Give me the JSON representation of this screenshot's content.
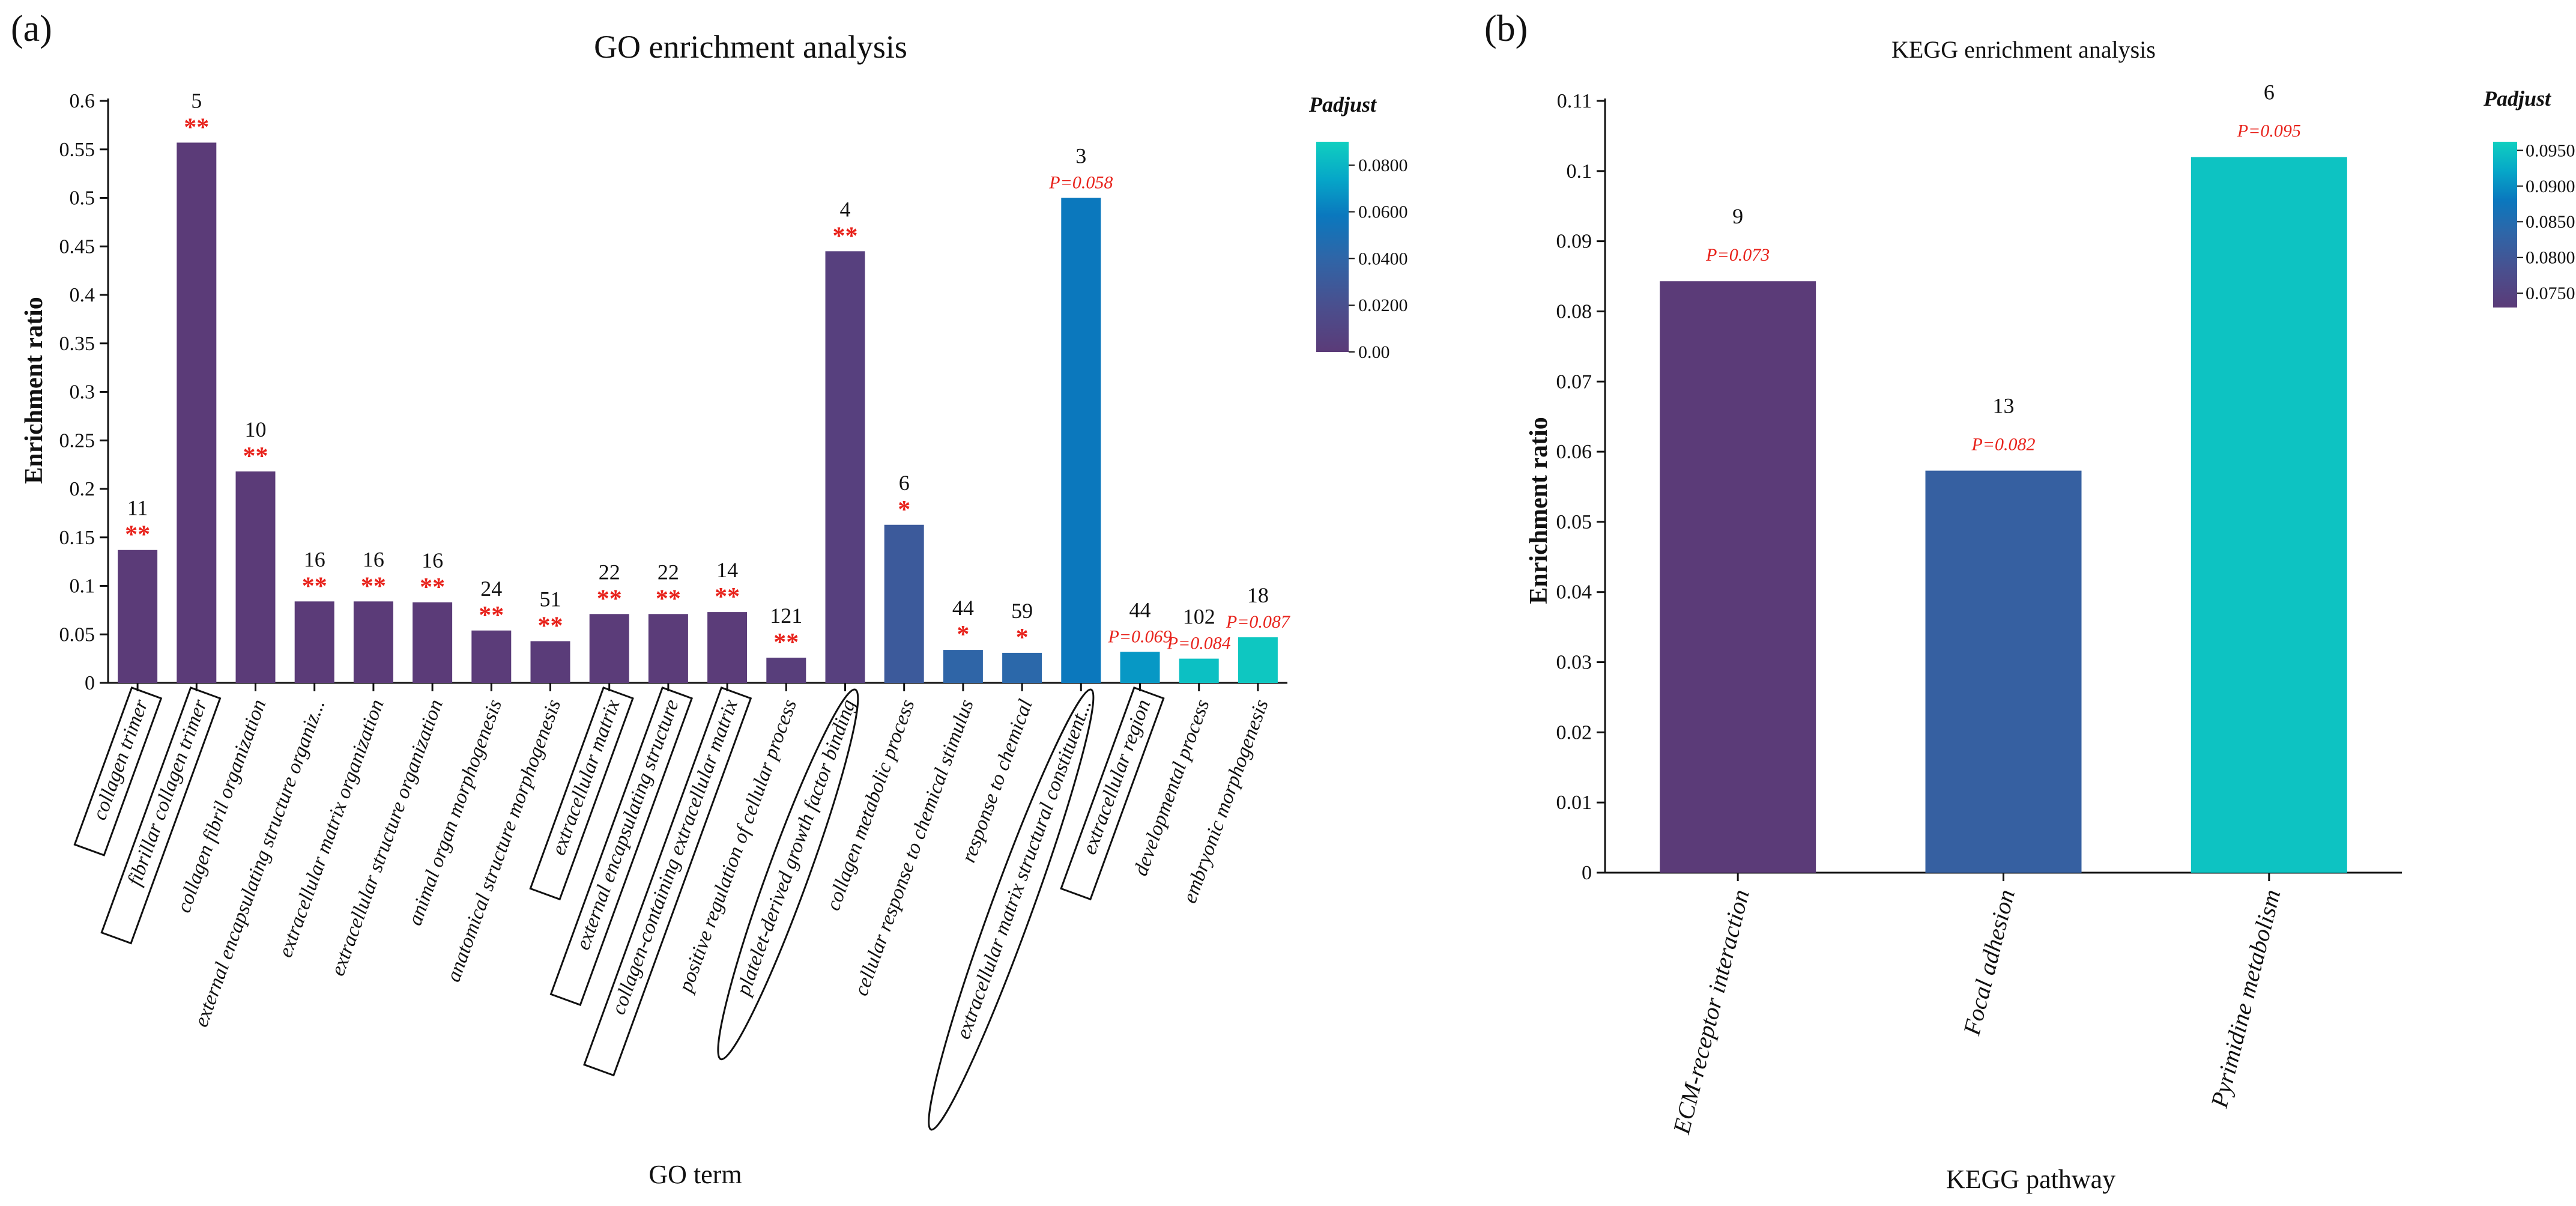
{
  "panel_a_letter": "(a)",
  "panel_b_letter": "(b)",
  "chart_data": [
    {
      "type": "bar",
      "title": "GO enrichment analysis",
      "xlabel": "GO term",
      "ylabel": "Enrichment ratio",
      "ylim": [
        0,
        0.6
      ],
      "yticks": [
        "0",
        "0.05",
        "0.1",
        "0.15",
        "0.2",
        "0.25",
        "0.3",
        "0.35",
        "0.4",
        "0.45",
        "0.5",
        "0.55",
        "0.6"
      ],
      "categories": [
        "collagen trimer",
        "fibrillar collagen trimer",
        "collagen fibril organization",
        "external encapsulating structure organiz...",
        "extracellular matrix organization",
        "extracellular structure organization",
        "animal organ morphogenesis",
        "anatomical structure morphogenesis",
        "extracellular matrix",
        "external encapsulating structure",
        "collagen-containing extracellular matrix",
        "positive regulation of cellular process",
        "platelet-derived growth factor binding",
        "collagen metabolic process",
        "cellular response to chemical stimulus",
        "response to chemical",
        "extracellular matrix structural constituent...",
        "extracellular region",
        "developmental process",
        "embryonic morphogenesis"
      ],
      "values": [
        0.137,
        0.557,
        0.218,
        0.084,
        0.084,
        0.083,
        0.054,
        0.043,
        0.071,
        0.071,
        0.073,
        0.026,
        0.445,
        0.163,
        0.034,
        0.031,
        0.5,
        0.032,
        0.025,
        0.047
      ],
      "counts": [
        "11",
        "5",
        "10",
        "16",
        "16",
        "16",
        "24",
        "51",
        "22",
        "22",
        "14",
        "121",
        "4",
        "6",
        "44",
        "59",
        "3",
        "44",
        "102",
        "18"
      ],
      "significance": [
        "**",
        "**",
        "**",
        "**",
        "**",
        "**",
        "**",
        "**",
        "**",
        "**",
        "**",
        "**",
        "**",
        "*",
        "*",
        "*",
        "P=0.058",
        "P=0.069",
        "P=0.084",
        "P=0.087"
      ],
      "padjust": [
        0.0002,
        0.0001,
        0.0003,
        0.0004,
        0.0004,
        0.0004,
        0.0005,
        0.0006,
        0.0005,
        0.0005,
        0.0005,
        0.003,
        0.005,
        0.03,
        0.04,
        0.042,
        0.058,
        0.069,
        0.084,
        0.087
      ],
      "boxed": [
        true,
        true,
        false,
        false,
        false,
        false,
        false,
        false,
        true,
        true,
        true,
        false,
        false,
        false,
        false,
        false,
        false,
        true,
        false,
        false
      ],
      "circled": [
        false,
        false,
        false,
        false,
        false,
        false,
        false,
        false,
        false,
        false,
        false,
        false,
        true,
        false,
        false,
        false,
        true,
        false,
        false,
        false
      ],
      "legend": {
        "title": "Padjust",
        "min": 0,
        "max": 0.09,
        "ticks": [
          "0.00",
          "0.0200",
          "0.0400",
          "0.0600",
          "0.0800"
        ],
        "tick_values": [
          0,
          0.02,
          0.04,
          0.06,
          0.08
        ]
      }
    },
    {
      "type": "bar",
      "title": "KEGG enrichment analysis",
      "xlabel": "KEGG pathway",
      "ylabel": "Enrichment ratio",
      "ylim": [
        0,
        0.11
      ],
      "yticks": [
        "0",
        "0.01",
        "0.02",
        "0.03",
        "0.04",
        "0.05",
        "0.06",
        "0.07",
        "0.08",
        "0.09",
        "0.1",
        "0.11"
      ],
      "categories": [
        "ECM-receptor interaction",
        "Focal adhesion",
        "Pyrimidine metabolism"
      ],
      "values": [
        0.0843,
        0.0573,
        0.102
      ],
      "counts": [
        "9",
        "13",
        "6"
      ],
      "significance": [
        "P=0.073",
        "P=0.082",
        "P=0.095"
      ],
      "padjust": [
        0.073,
        0.082,
        0.095
      ],
      "legend": {
        "title": "Padjust",
        "min": 0.073,
        "max": 0.0962,
        "ticks": [
          "0.0750",
          "0.0800",
          "0.0850",
          "0.0900",
          "0.0950"
        ],
        "tick_values": [
          0.075,
          0.08,
          0.085,
          0.09,
          0.095
        ]
      }
    }
  ],
  "colors": {
    "gradient_low": "#5b3b78",
    "gradient_mid1": "#4a4f8e",
    "gradient_mid2": "#2e66a8",
    "gradient_mid3": "#0a78be",
    "gradient_mid4": "#06a6c8",
    "gradient_high": "#10cfc0",
    "significance": "#e8221b",
    "axis": "#111111"
  }
}
